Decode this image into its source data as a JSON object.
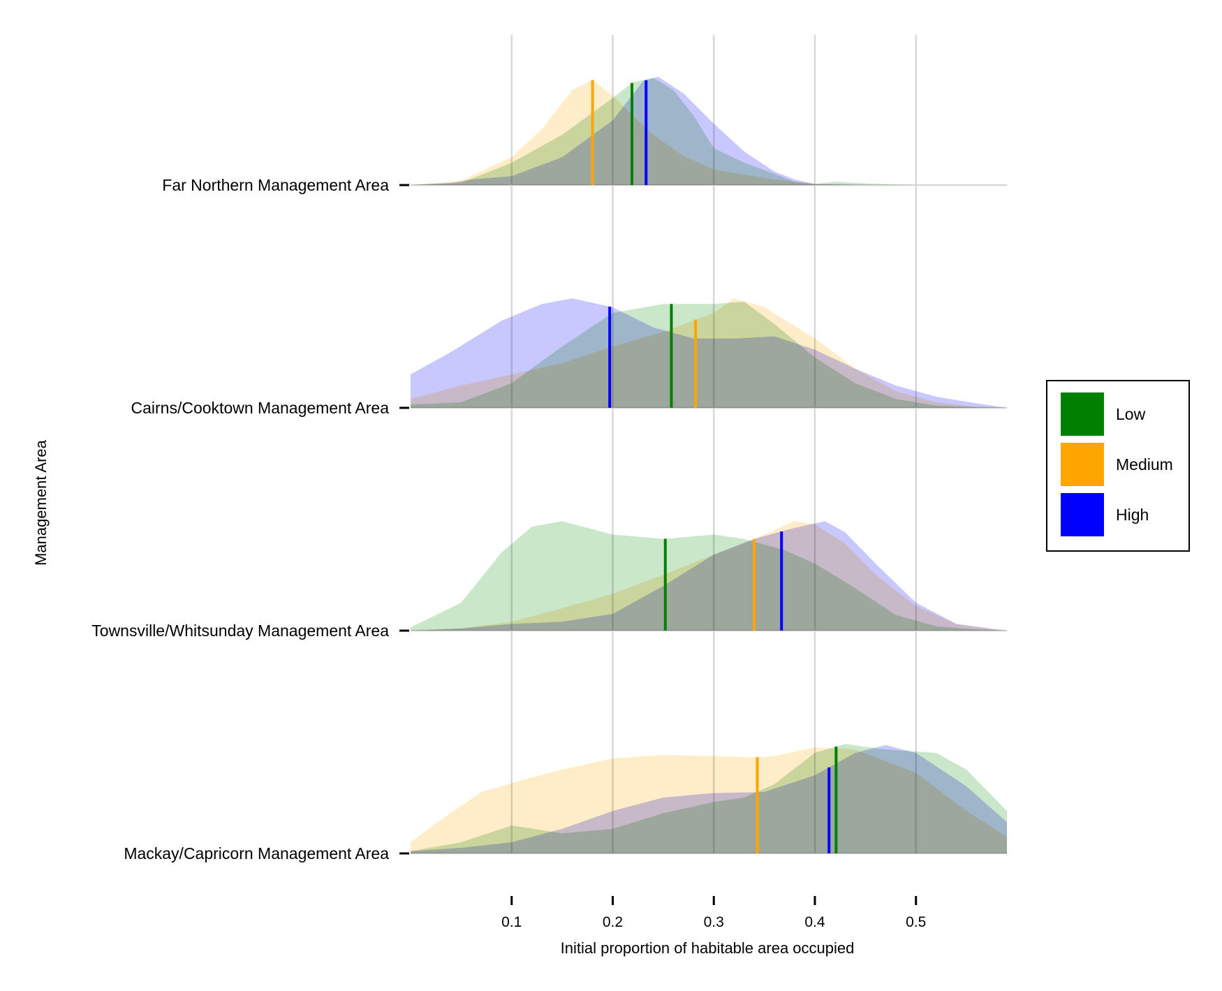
{
  "chart_data": {
    "type": "ridgeline_density",
    "xlabel": "Initial proportion of habitable area occupied",
    "ylabel": "Management Area",
    "xlim": [
      0.0,
      0.59
    ],
    "xticks": [
      0.1,
      0.2,
      0.3,
      0.4,
      0.5
    ],
    "xtick_labels": [
      "0.1",
      "0.2",
      "0.3",
      "0.4",
      "0.5"
    ],
    "grid": "vertical",
    "legend_position": "right",
    "series": [
      {
        "name": "Low",
        "color": "#008000",
        "fill": "#a9d8a9"
      },
      {
        "name": "Medium",
        "color": "#ffa500",
        "fill": "#ffe0a6"
      },
      {
        "name": "High",
        "color": "#0000ff",
        "fill": "#a6a6ff"
      }
    ],
    "categories": [
      {
        "label": "Far Northern Management Area",
        "medians": {
          "Low": 0.219,
          "Medium": 0.18,
          "High": 0.233
        },
        "density": {
          "Low": [
            [
              0.0,
              0
            ],
            [
              0.05,
              0.02
            ],
            [
              0.1,
              0.2
            ],
            [
              0.15,
              0.45
            ],
            [
              0.2,
              0.78
            ],
            [
              0.22,
              0.92
            ],
            [
              0.24,
              0.96
            ],
            [
              0.26,
              0.85
            ],
            [
              0.28,
              0.62
            ],
            [
              0.3,
              0.33
            ],
            [
              0.33,
              0.2
            ],
            [
              0.36,
              0.1
            ],
            [
              0.38,
              0.03
            ],
            [
              0.4,
              0.01
            ],
            [
              0.42,
              0.03
            ],
            [
              0.46,
              0.01
            ],
            [
              0.5,
              0
            ],
            [
              0.59,
              0
            ]
          ],
          "Medium": [
            [
              0.0,
              0
            ],
            [
              0.05,
              0.04
            ],
            [
              0.1,
              0.25
            ],
            [
              0.13,
              0.5
            ],
            [
              0.16,
              0.85
            ],
            [
              0.18,
              0.94
            ],
            [
              0.2,
              0.8
            ],
            [
              0.22,
              0.62
            ],
            [
              0.24,
              0.45
            ],
            [
              0.27,
              0.26
            ],
            [
              0.3,
              0.14
            ],
            [
              0.34,
              0.08
            ],
            [
              0.36,
              0.05
            ],
            [
              0.4,
              0.01
            ],
            [
              0.44,
              0
            ],
            [
              0.59,
              0
            ]
          ],
          "High": [
            [
              0.0,
              0
            ],
            [
              0.04,
              0.02
            ],
            [
              0.06,
              0.05
            ],
            [
              0.1,
              0.08
            ],
            [
              0.15,
              0.25
            ],
            [
              0.2,
              0.58
            ],
            [
              0.23,
              0.93
            ],
            [
              0.245,
              0.97
            ],
            [
              0.27,
              0.82
            ],
            [
              0.3,
              0.55
            ],
            [
              0.33,
              0.3
            ],
            [
              0.36,
              0.12
            ],
            [
              0.38,
              0.05
            ],
            [
              0.4,
              0.01
            ],
            [
              0.45,
              0
            ],
            [
              0.59,
              0
            ]
          ]
        }
      },
      {
        "label": "Cairns/Cooktown Management Area",
        "medians": {
          "Low": 0.258,
          "Medium": 0.282,
          "High": 0.197
        },
        "density": {
          "Low": [
            [
              0.0,
              0.03
            ],
            [
              0.05,
              0.05
            ],
            [
              0.1,
              0.22
            ],
            [
              0.15,
              0.55
            ],
            [
              0.2,
              0.85
            ],
            [
              0.25,
              0.93
            ],
            [
              0.3,
              0.93
            ],
            [
              0.33,
              0.95
            ],
            [
              0.36,
              0.75
            ],
            [
              0.4,
              0.45
            ],
            [
              0.44,
              0.22
            ],
            [
              0.48,
              0.08
            ],
            [
              0.52,
              0.02
            ],
            [
              0.56,
              0.005
            ],
            [
              0.59,
              0
            ]
          ],
          "Medium": [
            [
              0.0,
              0.08
            ],
            [
              0.05,
              0.2
            ],
            [
              0.1,
              0.3
            ],
            [
              0.15,
              0.4
            ],
            [
              0.2,
              0.55
            ],
            [
              0.25,
              0.68
            ],
            [
              0.3,
              0.85
            ],
            [
              0.32,
              0.98
            ],
            [
              0.35,
              0.9
            ],
            [
              0.4,
              0.62
            ],
            [
              0.44,
              0.35
            ],
            [
              0.48,
              0.15
            ],
            [
              0.52,
              0.05
            ],
            [
              0.56,
              0.01
            ],
            [
              0.59,
              0
            ]
          ],
          "High": [
            [
              0.0,
              0.3
            ],
            [
              0.04,
              0.5
            ],
            [
              0.09,
              0.78
            ],
            [
              0.13,
              0.93
            ],
            [
              0.16,
              0.98
            ],
            [
              0.2,
              0.9
            ],
            [
              0.24,
              0.72
            ],
            [
              0.28,
              0.62
            ],
            [
              0.32,
              0.62
            ],
            [
              0.36,
              0.64
            ],
            [
              0.4,
              0.52
            ],
            [
              0.44,
              0.35
            ],
            [
              0.48,
              0.2
            ],
            [
              0.52,
              0.1
            ],
            [
              0.56,
              0.04
            ],
            [
              0.59,
              0
            ]
          ]
        }
      },
      {
        "label": "Townsville/Whitsunday Management Area",
        "medians": {
          "Low": 0.252,
          "Medium": 0.34,
          "High": 0.367
        },
        "density": {
          "Low": [
            [
              0.0,
              0.03
            ],
            [
              0.05,
              0.25
            ],
            [
              0.09,
              0.7
            ],
            [
              0.12,
              0.93
            ],
            [
              0.15,
              0.98
            ],
            [
              0.2,
              0.86
            ],
            [
              0.25,
              0.82
            ],
            [
              0.3,
              0.86
            ],
            [
              0.33,
              0.82
            ],
            [
              0.37,
              0.72
            ],
            [
              0.4,
              0.6
            ],
            [
              0.44,
              0.38
            ],
            [
              0.48,
              0.14
            ],
            [
              0.52,
              0.04
            ],
            [
              0.56,
              0.01
            ],
            [
              0.59,
              0
            ]
          ],
          "Medium": [
            [
              0.0,
              0
            ],
            [
              0.05,
              0.02
            ],
            [
              0.1,
              0.08
            ],
            [
              0.15,
              0.2
            ],
            [
              0.2,
              0.33
            ],
            [
              0.25,
              0.5
            ],
            [
              0.3,
              0.68
            ],
            [
              0.34,
              0.82
            ],
            [
              0.38,
              0.98
            ],
            [
              0.4,
              0.95
            ],
            [
              0.43,
              0.78
            ],
            [
              0.46,
              0.5
            ],
            [
              0.5,
              0.22
            ],
            [
              0.54,
              0.06
            ],
            [
              0.58,
              0.01
            ],
            [
              0.59,
              0
            ]
          ],
          "High": [
            [
              0.0,
              0
            ],
            [
              0.05,
              0.02
            ],
            [
              0.1,
              0.06
            ],
            [
              0.15,
              0.08
            ],
            [
              0.2,
              0.15
            ],
            [
              0.25,
              0.4
            ],
            [
              0.3,
              0.68
            ],
            [
              0.34,
              0.82
            ],
            [
              0.38,
              0.92
            ],
            [
              0.41,
              0.98
            ],
            [
              0.43,
              0.88
            ],
            [
              0.46,
              0.6
            ],
            [
              0.5,
              0.25
            ],
            [
              0.54,
              0.06
            ],
            [
              0.58,
              0.01
            ],
            [
              0.59,
              0
            ]
          ]
        }
      },
      {
        "label": "Mackay/Capricorn Management Area",
        "medians": {
          "Low": 0.421,
          "Medium": 0.343,
          "High": 0.414
        },
        "density": {
          "Low": [
            [
              0.0,
              0.02
            ],
            [
              0.05,
              0.1
            ],
            [
              0.1,
              0.25
            ],
            [
              0.15,
              0.18
            ],
            [
              0.2,
              0.22
            ],
            [
              0.25,
              0.36
            ],
            [
              0.3,
              0.46
            ],
            [
              0.33,
              0.5
            ],
            [
              0.36,
              0.62
            ],
            [
              0.4,
              0.9
            ],
            [
              0.43,
              0.98
            ],
            [
              0.47,
              0.93
            ],
            [
              0.52,
              0.9
            ],
            [
              0.55,
              0.75
            ],
            [
              0.59,
              0.38
            ]
          ],
          "Medium": [
            [
              0.0,
              0.1
            ],
            [
              0.03,
              0.3
            ],
            [
              0.07,
              0.55
            ],
            [
              0.12,
              0.68
            ],
            [
              0.15,
              0.75
            ],
            [
              0.2,
              0.85
            ],
            [
              0.25,
              0.88
            ],
            [
              0.3,
              0.87
            ],
            [
              0.34,
              0.86
            ],
            [
              0.36,
              0.87
            ],
            [
              0.4,
              0.95
            ],
            [
              0.44,
              0.93
            ],
            [
              0.5,
              0.72
            ],
            [
              0.55,
              0.38
            ],
            [
              0.59,
              0.15
            ]
          ],
          "High": [
            [
              0.0,
              0.02
            ],
            [
              0.05,
              0.05
            ],
            [
              0.1,
              0.1
            ],
            [
              0.15,
              0.22
            ],
            [
              0.2,
              0.38
            ],
            [
              0.25,
              0.5
            ],
            [
              0.3,
              0.54
            ],
            [
              0.35,
              0.55
            ],
            [
              0.4,
              0.7
            ],
            [
              0.44,
              0.9
            ],
            [
              0.47,
              0.97
            ],
            [
              0.5,
              0.9
            ],
            [
              0.55,
              0.6
            ],
            [
              0.59,
              0.28
            ]
          ]
        }
      }
    ]
  }
}
